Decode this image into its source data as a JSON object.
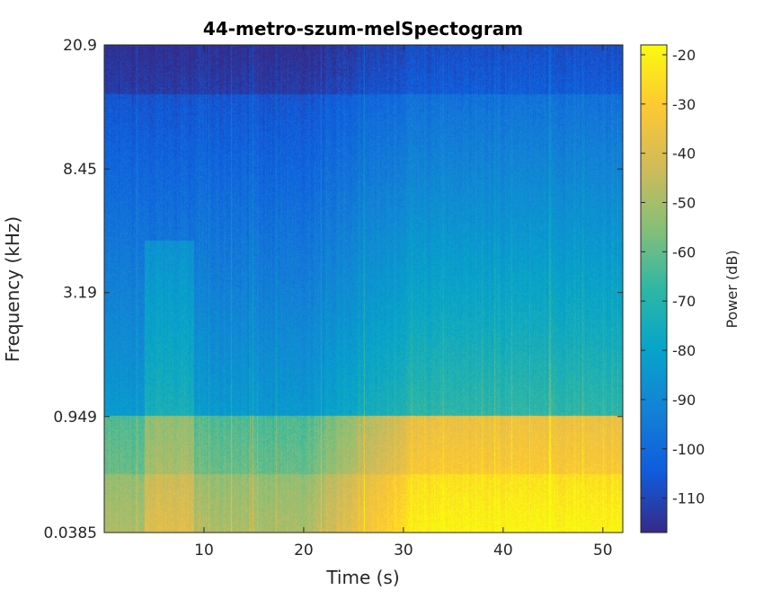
{
  "chart_data": {
    "type": "heatmap",
    "title": "44-metro-szum-melSpectogram",
    "xlabel": "Time (s)",
    "ylabel": "Frequency (kHz)",
    "colorbar_label": "Power (dB)",
    "colormap": "parula",
    "xlim": [
      0,
      52
    ],
    "x_ticks": [
      10,
      20,
      30,
      40,
      50
    ],
    "y_scale": "mel",
    "ylim": [
      0.0385,
      20.9
    ],
    "y_ticks": [
      0.0385,
      0.949,
      3.19,
      8.45,
      20.9
    ],
    "y_tick_labels": [
      "0.0385",
      "0.949",
      "3.19",
      "8.45",
      "20.9"
    ],
    "clim": [
      -117,
      -18
    ],
    "colorbar_ticks": [
      -110,
      -100,
      -90,
      -80,
      -70,
      -60,
      -50,
      -40,
      -30,
      -20
    ],
    "grid": false,
    "colors": {
      "parula": [
        "#352a87",
        "#0f5cdd",
        "#1481d6",
        "#06a4ca",
        "#2eb7a4",
        "#87bf77",
        "#d1bb59",
        "#fec832",
        "#f9fb0e"
      ]
    }
  }
}
